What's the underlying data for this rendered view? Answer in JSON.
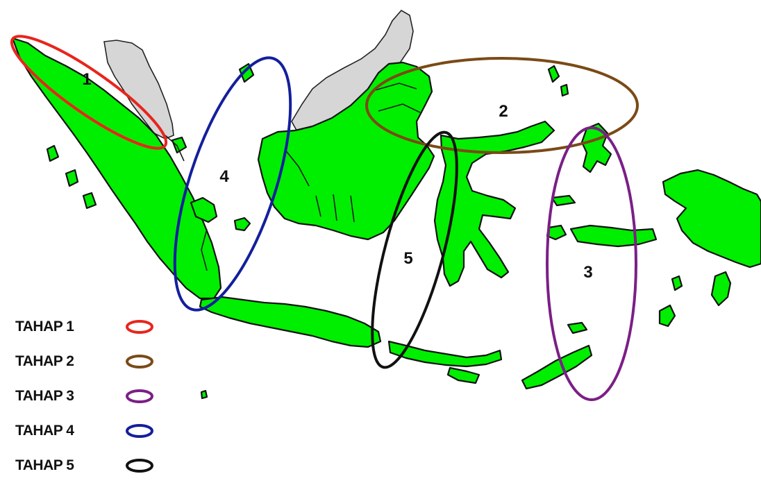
{
  "map": {
    "colors": {
      "land": "#00ee00",
      "neighbor": "#d6d6d6",
      "outline": "#111111"
    },
    "zones": [
      {
        "id": 1,
        "label": "1",
        "color": "#e8251d"
      },
      {
        "id": 2,
        "label": "2",
        "color": "#7a4a16"
      },
      {
        "id": 3,
        "label": "3",
        "color": "#7b1f86"
      },
      {
        "id": 4,
        "label": "4",
        "color": "#141f9c"
      },
      {
        "id": 5,
        "label": "5",
        "color": "#111111"
      }
    ]
  },
  "legend": {
    "items": [
      {
        "label": "TAHAP 1",
        "color": "#e8251d"
      },
      {
        "label": "TAHAP 2",
        "color": "#7a4a16"
      },
      {
        "label": "TAHAP 3",
        "color": "#7b1f86"
      },
      {
        "label": "TAHAP 4",
        "color": "#141f9c"
      },
      {
        "label": "TAHAP 5",
        "color": "#111111"
      }
    ]
  }
}
